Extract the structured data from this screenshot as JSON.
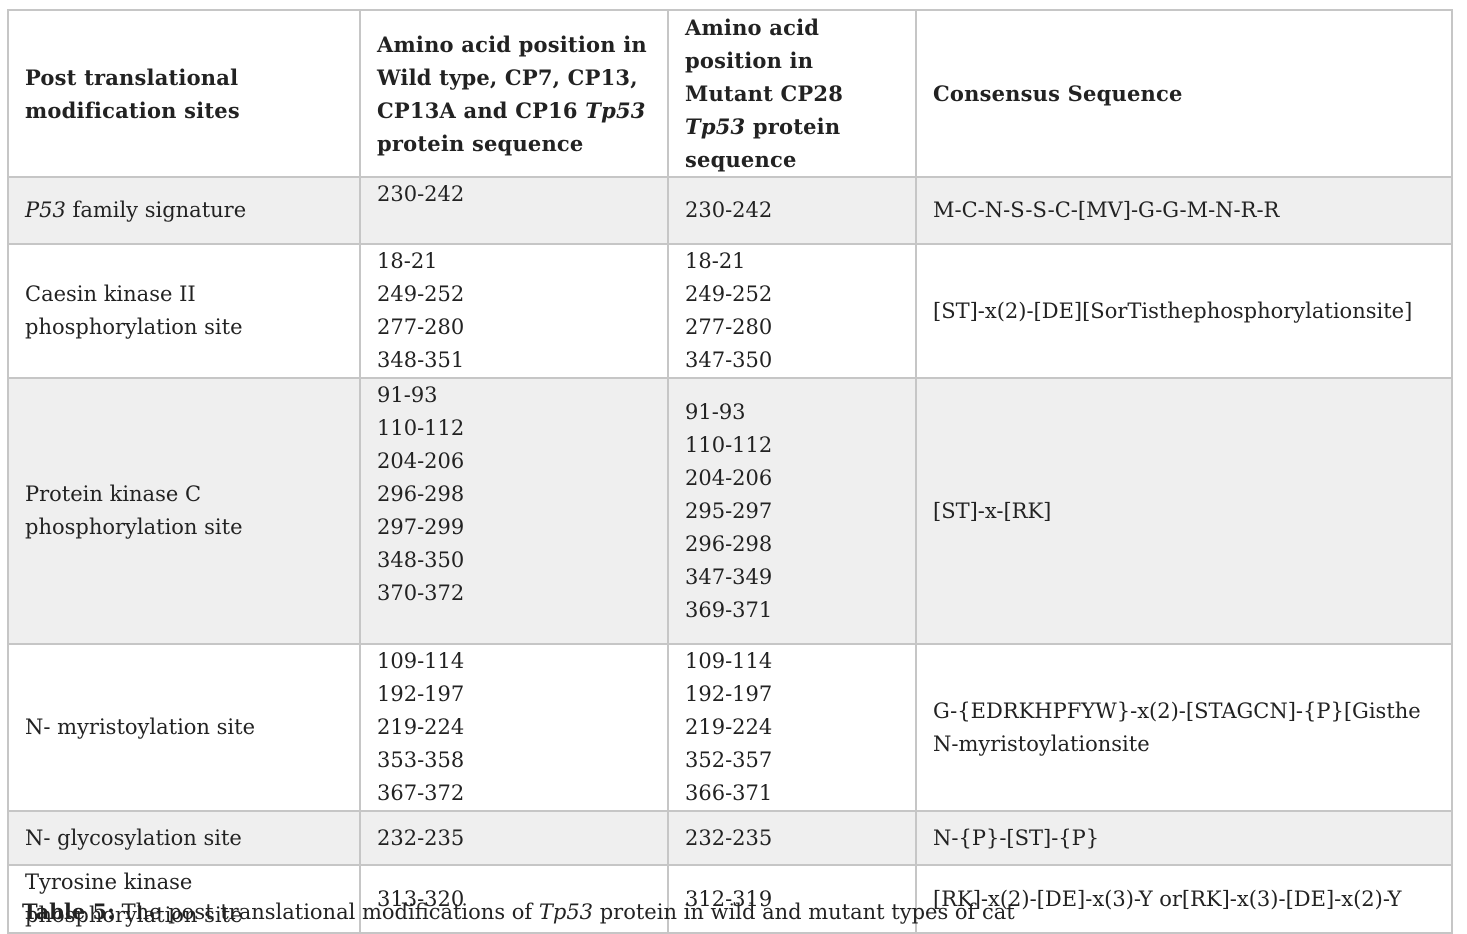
{
  "headers": {
    "col1": "Post translational modification sites",
    "col2_pre": "Amino acid position in Wild type, CP7, CP13, CP13A and CP16",
    "col2_italic": "Tp53",
    "col2_post": "protein sequence",
    "col3_pre": "Amino acid position in Mutant CP28",
    "col3_italic": "Tp53",
    "col3_post": "protein sequence",
    "col4": "Consensus Sequence"
  },
  "rows": [
    {
      "site_italic": "P53",
      "site": "family signature",
      "wild": [
        "230-242"
      ],
      "mutant": [
        "230-242"
      ],
      "consensus": "M-C-N-S-S-C-[MV]-G-G-M-N-R-R"
    },
    {
      "site": "Caesin kinase II phosphorylation site",
      "wild": [
        "18-21",
        "249-252",
        "277-280",
        "348-351"
      ],
      "mutant": [
        "18-21",
        "249-252",
        "277-280",
        "347-350"
      ],
      "consensus": "[ST]-x(2)-[DE][SorTisthephosphorylationsite]"
    },
    {
      "site": "Protein kinase C phosphorylation site",
      "wild": [
        "91-93",
        "110-112",
        "204-206",
        "296-298",
        "297-299",
        "348-350",
        "370-372"
      ],
      "mutant": [
        "91-93",
        "110-112",
        "204-206",
        "295-297",
        "296-298",
        "347-349",
        "369-371"
      ],
      "consensus": "[ST]-x-[RK]"
    },
    {
      "site": "N- myristoylation site",
      "wild": [
        "109-114",
        "192-197",
        "219-224",
        "353-358",
        "367-372"
      ],
      "mutant": [
        "109-114",
        "192-197",
        "219-224",
        "352-357",
        "366-371"
      ],
      "consensus": "G-{EDRKHPFYW}-x(2)-[STAGCN]-{P}[GistheN-myristoylationsite"
    },
    {
      "site": "N- glycosylation site",
      "wild": [
        "232-235"
      ],
      "mutant": [
        "232-235"
      ],
      "consensus": "N-{P}-[ST]-{P}"
    },
    {
      "site": "Tyrosine kinase phosphorylation site",
      "wild": [
        "313-320"
      ],
      "mutant": [
        "312-319"
      ],
      "consensus": "[RK]-x(2)-[DE]-x(3)-Y or[RK]-x(3)-[DE]-x(2)-Y"
    }
  ],
  "caption": {
    "label": "Table 5:",
    "pre": "The post translational modifications of",
    "italic": "Tp53",
    "post": "protein in wild and mutant types of cat"
  }
}
